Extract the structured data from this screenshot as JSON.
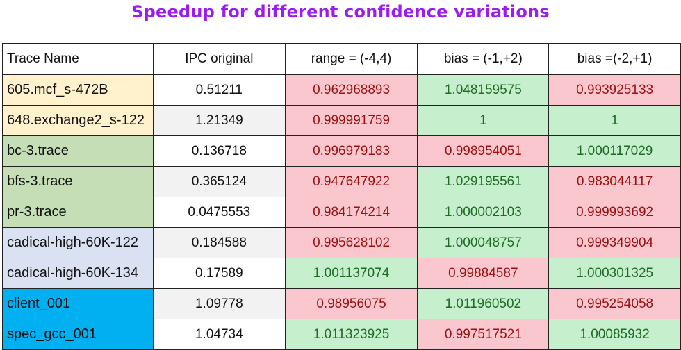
{
  "title": "Speedup for different confidence variations",
  "chart_data": {
    "type": "table",
    "columns": [
      "Trace Name",
      "IPC original",
      "range = (-4,4)",
      "bias = (-1,+2)",
      "bias =(-2,+1)"
    ],
    "rows": [
      {
        "name": "605.mcf_s-472B",
        "ipc": "0.51211",
        "range": "0.962968893",
        "bias1": "1.048159575",
        "bias2": "0.993925133"
      },
      {
        "name": "648.exchange2_s-122",
        "ipc": "1.21349",
        "range": "0.999991759",
        "bias1": "1",
        "bias2": "1"
      },
      {
        "name": "bc-3.trace",
        "ipc": "0.136718",
        "range": "0.996979183",
        "bias1": "0.998954051",
        "bias2": "1.000117029"
      },
      {
        "name": "bfs-3.trace",
        "ipc": "0.365124",
        "range": "0.947647922",
        "bias1": "1.029195561",
        "bias2": "0.983044117"
      },
      {
        "name": "pr-3.trace",
        "ipc": "0.0475553",
        "range": "0.984174214",
        "bias1": "1.000002103",
        "bias2": "0.999993692"
      },
      {
        "name": "cadical-high-60K-122",
        "ipc": "0.184588",
        "range": "0.995628102",
        "bias1": "1.000048757",
        "bias2": "0.999349904"
      },
      {
        "name": "cadical-high-60K-134",
        "ipc": "0.17589",
        "range": "1.001137074",
        "bias1": "0.99884587",
        "bias2": "1.000301325"
      },
      {
        "name": "client_001",
        "ipc": "1.09778",
        "range": "0.98956075",
        "bias1": "1.011960502",
        "bias2": "0.995254058"
      },
      {
        "name": "spec_gcc_001",
        "ipc": "1.04734",
        "range": "1.011323925",
        "bias1": "0.997517521",
        "bias2": "1.00085932"
      }
    ]
  }
}
